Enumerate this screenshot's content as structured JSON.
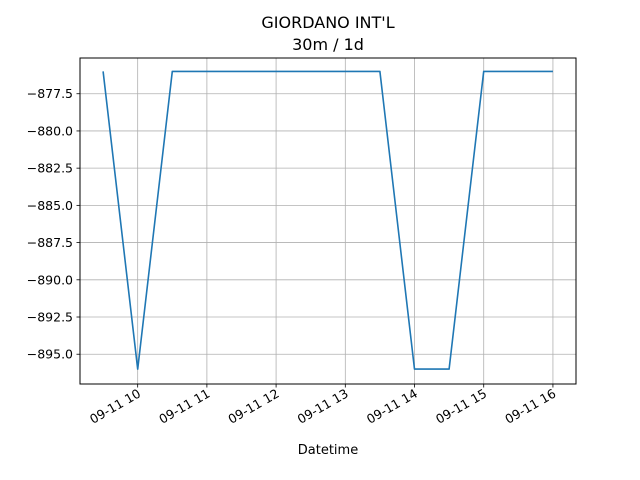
{
  "chart_data": {
    "type": "line",
    "title": "GIORDANO INT'L",
    "subtitle": "30m / 1d",
    "xlabel": "Datetime",
    "ylabel": "",
    "grid": true,
    "line_color": "#1f77b4",
    "x": [
      "09-11 09:30",
      "09-11 10:00",
      "09-11 10:30",
      "09-11 11:00",
      "09-11 11:30",
      "09-11 12:00",
      "09-11 12:30",
      "09-11 13:00",
      "09-11 13:30",
      "09-11 14:00",
      "09-11 14:30",
      "09-11 15:00",
      "09-11 15:30",
      "09-11 16:00"
    ],
    "values": [
      -876,
      -896,
      -876,
      -876,
      -876,
      -876,
      -876,
      -876,
      -876,
      -896,
      -896,
      -876,
      -876,
      -876
    ],
    "xlim": [
      "09-11 09:10",
      "09-11 16:20"
    ],
    "ylim": [
      -897,
      -875.1
    ],
    "xticks": [
      {
        "x": "09-11 10:00",
        "label": "09-11 10"
      },
      {
        "x": "09-11 11:00",
        "label": "09-11 11"
      },
      {
        "x": "09-11 12:00",
        "label": "09-11 12"
      },
      {
        "x": "09-11 13:00",
        "label": "09-11 13"
      },
      {
        "x": "09-11 14:00",
        "label": "09-11 14"
      },
      {
        "x": "09-11 15:00",
        "label": "09-11 15"
      },
      {
        "x": "09-11 16:00",
        "label": "09-11 16"
      }
    ],
    "yticks": [
      {
        "y": -877.5,
        "label": "−877.5"
      },
      {
        "y": -880.0,
        "label": "−880.0"
      },
      {
        "y": -882.5,
        "label": "−882.5"
      },
      {
        "y": -885.0,
        "label": "−885.0"
      },
      {
        "y": -887.5,
        "label": "−887.5"
      },
      {
        "y": -890.0,
        "label": "−890.0"
      },
      {
        "y": -892.5,
        "label": "−892.5"
      },
      {
        "y": -895.0,
        "label": "−895.0"
      }
    ]
  }
}
